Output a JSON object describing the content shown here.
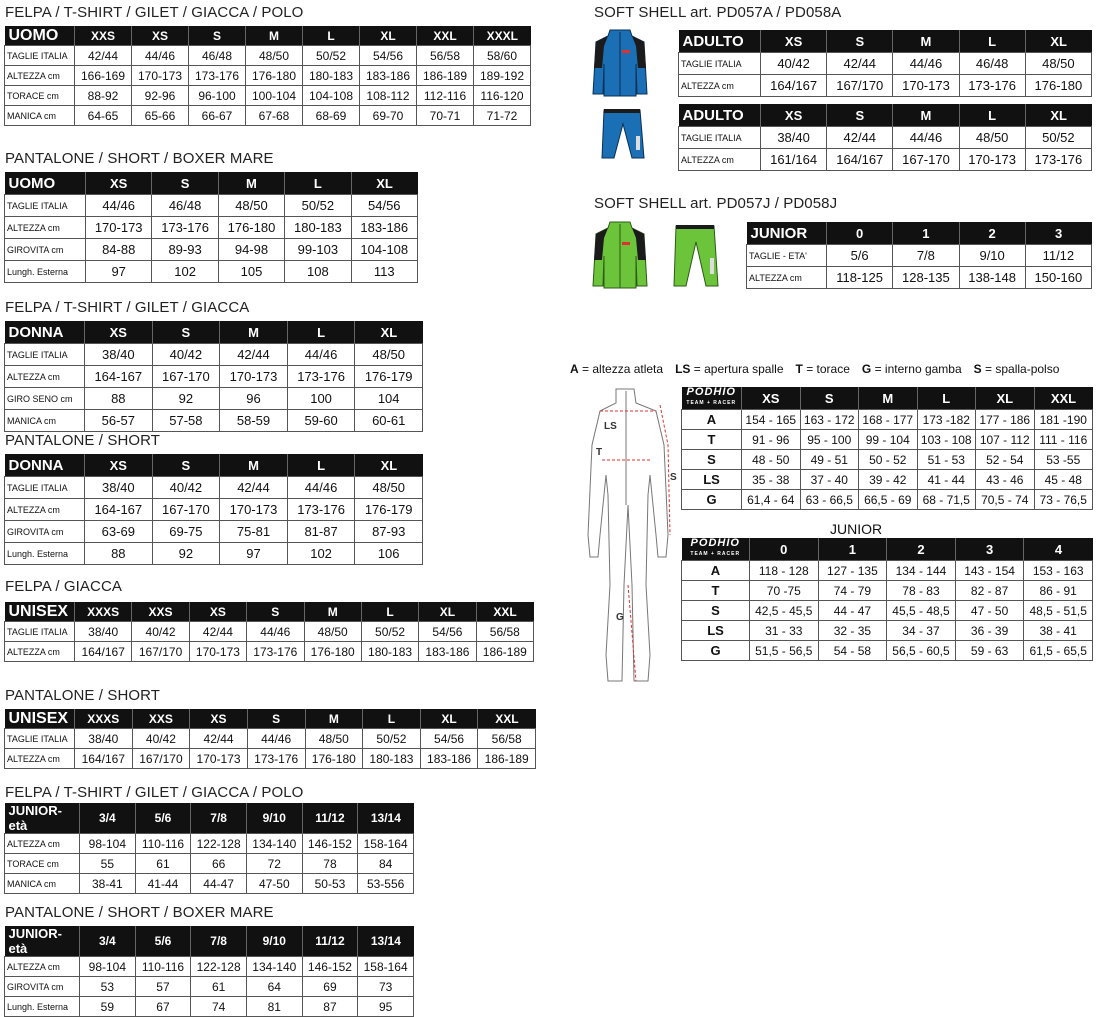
{
  "left": [
    {
      "title": "FELPA / T-SHIRT / GILET / GIACCA / POLO",
      "table": {
        "header": [
          "UOMO",
          "XXS",
          "XS",
          "S",
          "M",
          "L",
          "XL",
          "XXL",
          "XXXL"
        ],
        "rows": [
          [
            "TAGLIE ITALIA",
            "42/44",
            "44/46",
            "46/48",
            "48/50",
            "50/52",
            "54/56",
            "56/58",
            "58/60"
          ],
          [
            "ALTEZZA cm",
            "166-169",
            "170-173",
            "173-176",
            "176-180",
            "180-183",
            "183-186",
            "186-189",
            "189-192"
          ],
          [
            "TORACE cm",
            "88-92",
            "92-96",
            "96-100",
            "100-104",
            "104-108",
            "108-112",
            "112-116",
            "116-120"
          ],
          [
            "MANICA cm",
            "64-65",
            "65-66",
            "66-67",
            "67-68",
            "68-69",
            "69-70",
            "70-71",
            "71-72"
          ]
        ]
      }
    },
    {
      "title": "PANTALONE / SHORT / BOXER MARE",
      "table": {
        "header": [
          "UOMO",
          "XS",
          "S",
          "M",
          "L",
          "XL"
        ],
        "rows": [
          [
            "TAGLIE ITALIA",
            "44/46",
            "46/48",
            "48/50",
            "50/52",
            "54/56"
          ],
          [
            "ALTEZZA cm",
            "170-173",
            "173-176",
            "176-180",
            "180-183",
            "183-186"
          ],
          [
            "GIROVITA cm",
            "84-88",
            "89-93",
            "94-98",
            "99-103",
            "104-108"
          ],
          [
            "Lungh. Esterna",
            "97",
            "102",
            "105",
            "108",
            "113"
          ]
        ]
      }
    },
    {
      "title": "FELPA / T-SHIRT / GILET / GIACCA",
      "table": {
        "header": [
          "DONNA",
          "XS",
          "S",
          "M",
          "L",
          "XL"
        ],
        "rows": [
          [
            "TAGLIE ITALIA",
            "38/40",
            "40/42",
            "42/44",
            "44/46",
            "48/50"
          ],
          [
            "ALTEZZA cm",
            "164-167",
            "167-170",
            "170-173",
            "173-176",
            "176-179"
          ],
          [
            "GIRO SENO cm",
            "88",
            "92",
            "96",
            "100",
            "104"
          ],
          [
            "MANICA cm",
            "56-57",
            "57-58",
            "58-59",
            "59-60",
            "60-61"
          ]
        ]
      }
    },
    {
      "title": "PANTALONE / SHORT",
      "table": {
        "header": [
          "DONNA",
          "XS",
          "S",
          "M",
          "L",
          "XL"
        ],
        "rows": [
          [
            "TAGLIE ITALIA",
            "38/40",
            "40/42",
            "42/44",
            "44/46",
            "48/50"
          ],
          [
            "ALTEZZA cm",
            "164-167",
            "167-170",
            "170-173",
            "173-176",
            "176-179"
          ],
          [
            "GIROVITA cm",
            "63-69",
            "69-75",
            "75-81",
            "81-87",
            "87-93"
          ],
          [
            "Lungh. Esterna",
            "88",
            "92",
            "97",
            "102",
            "106"
          ]
        ]
      }
    },
    {
      "title": "FELPA / GIACCA",
      "table": {
        "header": [
          "UNISEX",
          "XXXS",
          "XXS",
          "XS",
          "S",
          "M",
          "L",
          "XL",
          "XXL"
        ],
        "rows": [
          [
            "TAGLIE ITALIA",
            "38/40",
            "40/42",
            "42/44",
            "44/46",
            "48/50",
            "50/52",
            "54/56",
            "56/58"
          ],
          [
            "ALTEZZA cm",
            "164/167",
            "167/170",
            "170-173",
            "173-176",
            "176-180",
            "180-183",
            "183-186",
            "186-189"
          ]
        ]
      }
    },
    {
      "title": "PANTALONE / SHORT",
      "table": {
        "header": [
          "UNISEX",
          "XXXS",
          "XXS",
          "XS",
          "S",
          "M",
          "L",
          "XL",
          "XXL"
        ],
        "rows": [
          [
            "TAGLIE ITALIA",
            "38/40",
            "40/42",
            "42/44",
            "44/46",
            "48/50",
            "50/52",
            "54/56",
            "56/58"
          ],
          [
            "ALTEZZA cm",
            "164/167",
            "167/170",
            "170-173",
            "173-176",
            "176-180",
            "180-183",
            "183-186",
            "186-189"
          ]
        ]
      }
    },
    {
      "title": "FELPA / T-SHIRT / GILET / GIACCA / POLO",
      "table": {
        "header": [
          "JUNIOR-età",
          "3/4",
          "5/6",
          "7/8",
          "9/10",
          "11/12",
          "13/14"
        ],
        "rows": [
          [
            "ALTEZZA cm",
            "98-104",
            "110-116",
            "122-128",
            "134-140",
            "146-152",
            "158-164"
          ],
          [
            "TORACE cm",
            "55",
            "61",
            "66",
            "72",
            "78",
            "84"
          ],
          [
            "MANICA cm",
            "38-41",
            "41-44",
            "44-47",
            "47-50",
            "50-53",
            "53-556"
          ]
        ]
      }
    },
    {
      "title": "PANTALONE / SHORT / BOXER MARE",
      "table": {
        "header": [
          "JUNIOR-età",
          "3/4",
          "5/6",
          "7/8",
          "9/10",
          "11/12",
          "13/14"
        ],
        "rows": [
          [
            "ALTEZZA cm",
            "98-104",
            "110-116",
            "122-128",
            "134-140",
            "146-152",
            "158-164"
          ],
          [
            "GIROVITA cm",
            "53",
            "57",
            "61",
            "64",
            "69",
            "73"
          ],
          [
            "Lungh. Esterna",
            "59",
            "67",
            "74",
            "81",
            "87",
            "95"
          ]
        ]
      }
    }
  ],
  "softshell_adult": {
    "title": "SOFT SHELL art. PD057A / PD058A",
    "jacket": {
      "header": [
        "ADULTO",
        "XS",
        "S",
        "M",
        "L",
        "XL"
      ],
      "rows": [
        [
          "TAGLIE ITALIA",
          "40/42",
          "42/44",
          "44/46",
          "46/48",
          "48/50"
        ],
        [
          "ALTEZZA cm",
          "164/167",
          "167/170",
          "170-173",
          "173-176",
          "176-180"
        ]
      ]
    },
    "pants": {
      "header": [
        "ADULTO",
        "XS",
        "S",
        "M",
        "L",
        "XL"
      ],
      "rows": [
        [
          "TAGLIE ITALIA",
          "38/40",
          "42/44",
          "44/46",
          "48/50",
          "50/52"
        ],
        [
          "ALTEZZA cm",
          "161/164",
          "164/167",
          "167-170",
          "170-173",
          "173-176"
        ]
      ]
    },
    "color": "#1a6fb5"
  },
  "softshell_junior": {
    "title": "SOFT SHELL art. PD057J / PD058J",
    "table": {
      "header": [
        "JUNIOR",
        "0",
        "1",
        "2",
        "3"
      ],
      "rows": [
        [
          "TAGLIE - ETA'",
          "5/6",
          "7/8",
          "9/10",
          "11/12"
        ],
        [
          "ALTEZZA cm",
          "118-125",
          "128-135",
          "138-148",
          "150-160"
        ]
      ]
    },
    "color": "#6cc43a"
  },
  "legend": [
    {
      "key": "A",
      "text": "= altezza atleta"
    },
    {
      "key": "LS",
      "text": "= apertura spalle"
    },
    {
      "key": "T",
      "text": "= torace"
    },
    {
      "key": "G",
      "text": "= interno gamba"
    },
    {
      "key": "S",
      "text": "= spalla-polso"
    }
  ],
  "suit_labels": {
    "ls": "LS",
    "t": "T",
    "s": "S",
    "g": "G"
  },
  "podhio_logo": {
    "line1": "PODHIO",
    "line2": "TEAM + RACER"
  },
  "suit_adult": {
    "header": [
      "",
      "XS",
      "S",
      "M",
      "L",
      "XL",
      "XXL"
    ],
    "rows": [
      [
        "A",
        "154 - 165",
        "163 - 172",
        "168 - 177",
        "173 -182",
        "177 - 186",
        "181 -190"
      ],
      [
        "T",
        "91 - 96",
        "95 - 100",
        "99 - 104",
        "103 - 108",
        "107 - 112",
        "111 - 116"
      ],
      [
        "S",
        "48 - 50",
        "49 - 51",
        "50 - 52",
        "51 - 53",
        "52 - 54",
        "53 -55"
      ],
      [
        "LS",
        "35 - 38",
        "37 - 40",
        "39 - 42",
        "41 - 44",
        "43 - 46",
        "45 - 48"
      ],
      [
        "G",
        "61,4 - 64",
        "63 - 66,5",
        "66,5 - 69",
        "68 - 71,5",
        "70,5 - 74",
        "73 - 76,5"
      ]
    ]
  },
  "suit_junior_label": "JUNIOR",
  "suit_junior": {
    "header": [
      "",
      "0",
      "1",
      "2",
      "3",
      "4"
    ],
    "rows": [
      [
        "A",
        "118 - 128",
        "127 - 135",
        "134 - 144",
        "143 - 154",
        "153 - 163"
      ],
      [
        "T",
        "70 -75",
        "74 - 79",
        "78 - 83",
        "82 - 87",
        "86 - 91"
      ],
      [
        "S",
        "42,5 - 45,5",
        "44 - 47",
        "45,5 - 48,5",
        "47 - 50",
        "48,5 - 51,5"
      ],
      [
        "LS",
        "31 - 33",
        "32 - 35",
        "34 - 37",
        "36 - 39",
        "38 - 41"
      ],
      [
        "G",
        "51,5 - 56,5",
        "54 - 58",
        "56,5 - 60,5",
        "59 - 63",
        "61,5 - 65,5"
      ]
    ]
  }
}
